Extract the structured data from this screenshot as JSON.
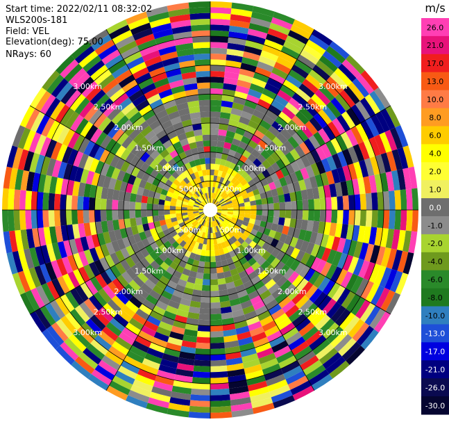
{
  "info": {
    "start_time": "Start time: 2022/02/11 08:32:02",
    "instrument": "WLS200s-181",
    "field": "Field: VEL",
    "elevation": "Elevation(deg): 75.00",
    "nrays": "NRays: 60"
  },
  "colorbar": {
    "unit": "m/s",
    "ticks": [
      "26.0",
      "21.0",
      "17.0",
      "13.0",
      "10.0",
      "8.0",
      "6.0",
      "4.0",
      "2.0",
      "1.0",
      "0.0",
      "-1.0",
      "-2.0",
      "-4.0",
      "-6.0",
      "-8.0",
      "-10.0",
      "-13.0",
      "-17.0",
      "-21.0",
      "-26.0",
      "-30.0"
    ],
    "colors": [
      "#ff3fb4",
      "#e8127a",
      "#f01e1e",
      "#f85a14",
      "#ff7b45",
      "#ff9c22",
      "#ffcc00",
      "#ffff00",
      "#ffff33",
      "#f0f060",
      "#6e6e6e",
      "#8c8c8c",
      "#a8d430",
      "#6f9a1e",
      "#2a8a2a",
      "#1f7a1f",
      "#2f7fbf",
      "#1e4fd8",
      "#0000e0",
      "#000080",
      "#0a0a50",
      "#050530"
    ]
  },
  "chart_data": {
    "type": "heatmap",
    "projection": "polar PPI",
    "field": "VEL",
    "n_rays": 60,
    "range_rings": [
      "500m",
      "1.00km",
      "1.50km",
      "2.00km",
      "2.50km",
      "3.00km"
    ],
    "ring_values_m": [
      500,
      1000,
      1500,
      2000,
      2500,
      3000
    ],
    "max_range_m": 3600,
    "gate_spacing_m": 100,
    "first_gate_m": 100,
    "spokes_deg": [
      0,
      30,
      60,
      90,
      120,
      150,
      180,
      210,
      240,
      270,
      300,
      330
    ],
    "vmin": -30.0,
    "vmax": 26.0,
    "dominant_by_range": [
      {
        "range_m": [
          100,
          800
        ],
        "description_values": [
          1.0,
          2.0,
          0.0
        ]
      },
      {
        "range_m": [
          800,
          2000
        ],
        "description_values": [
          0.0,
          -2.0,
          -4.0
        ]
      },
      {
        "range_m": [
          2000,
          3600
        ],
        "description_values": [
          -30.0,
          26.0
        ]
      }
    ]
  }
}
